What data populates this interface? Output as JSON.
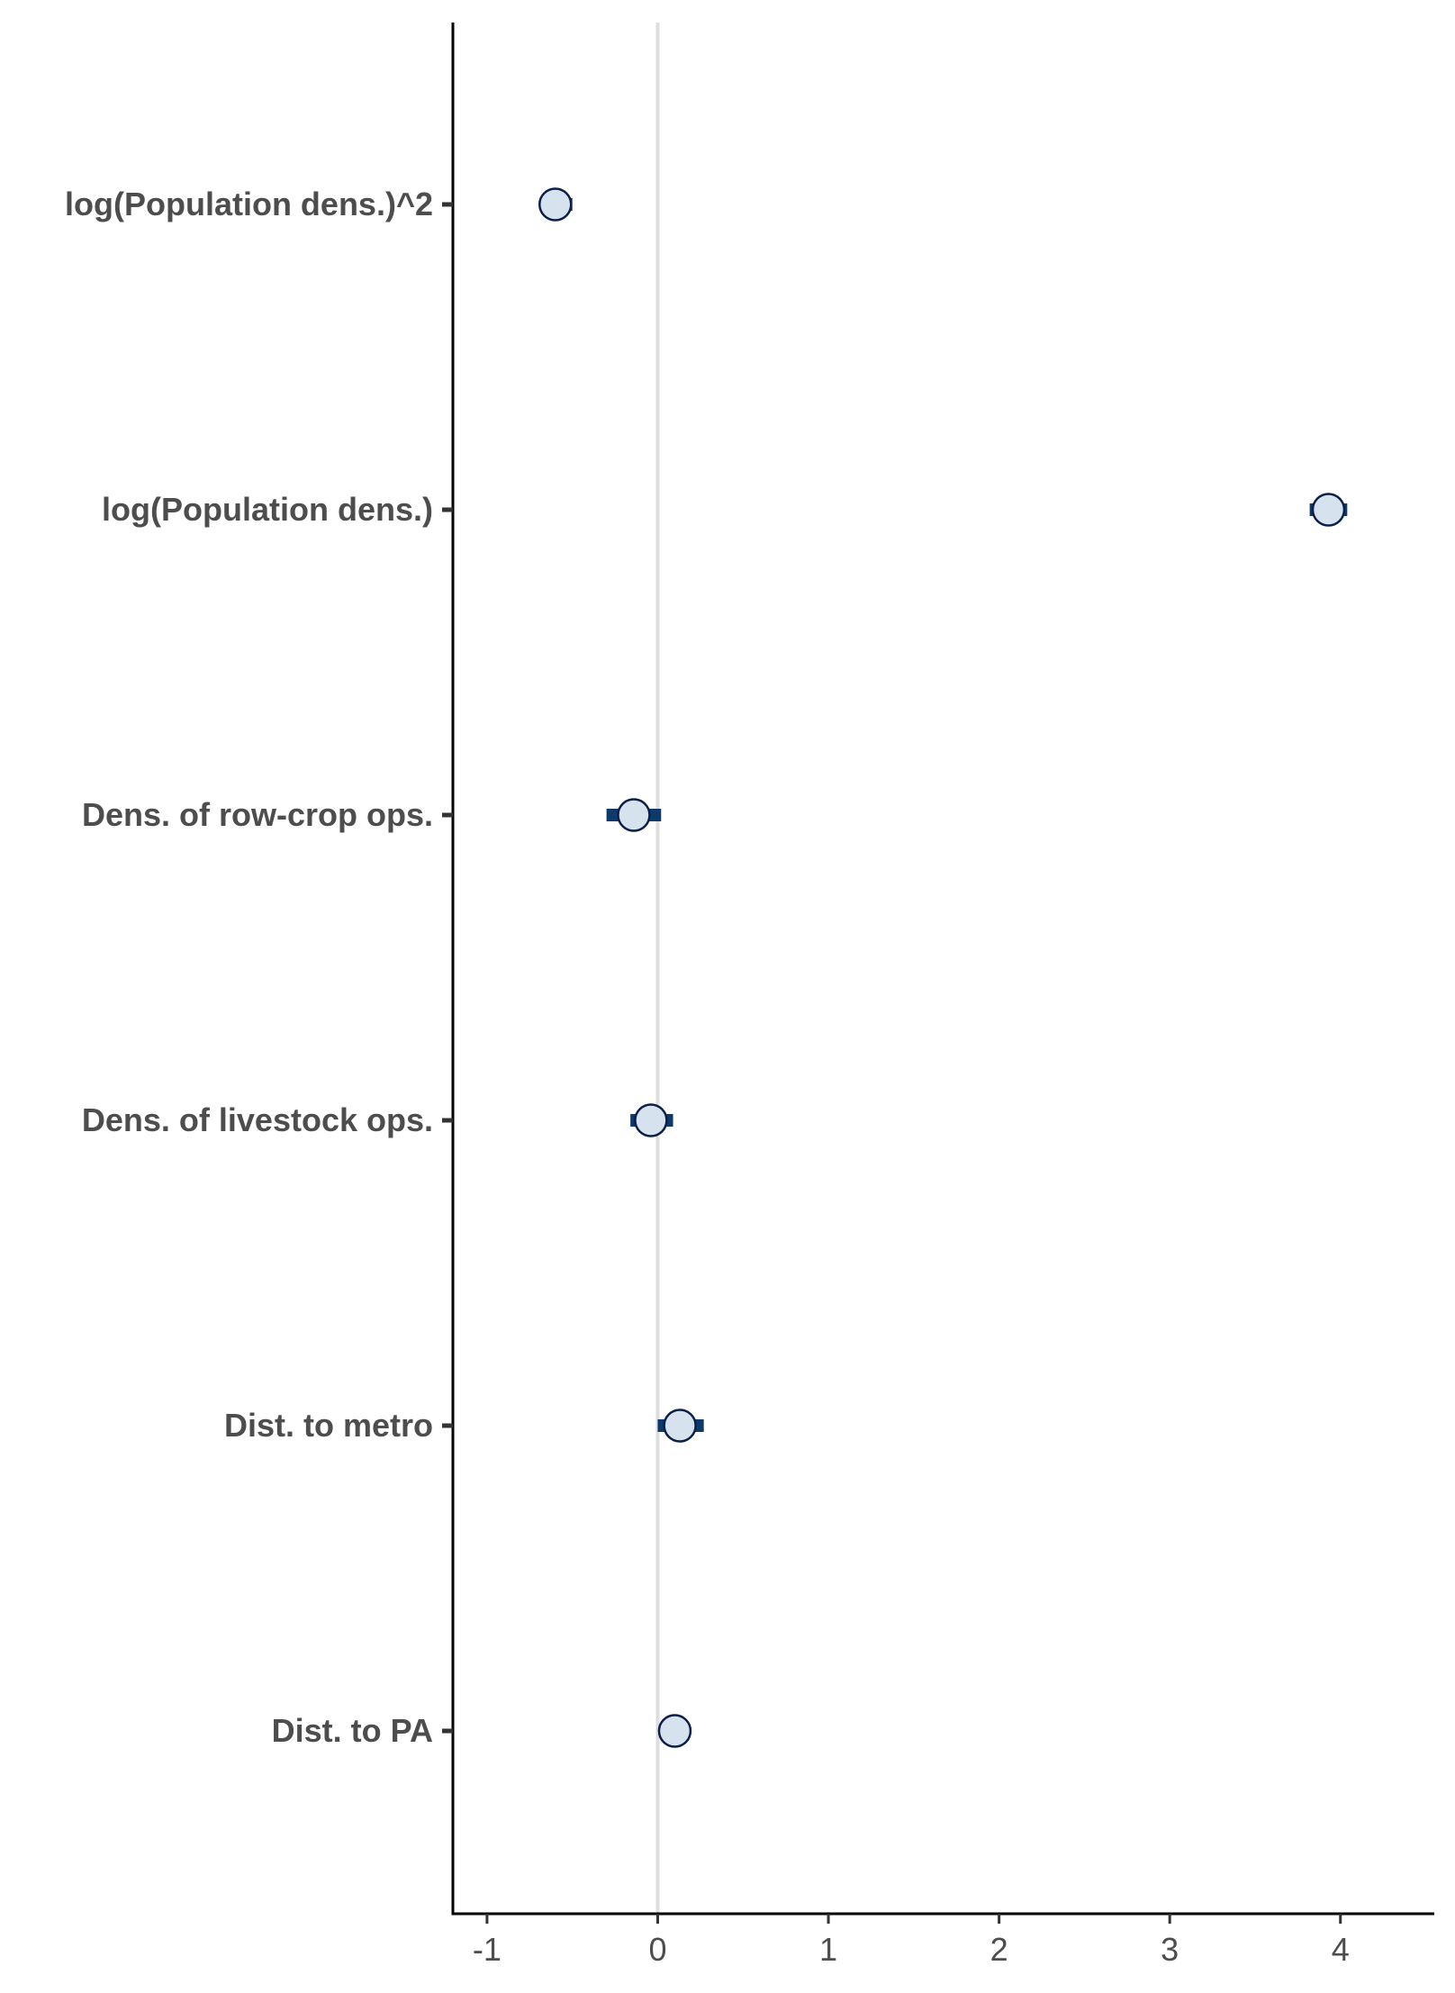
{
  "chart_data": {
    "type": "scatter",
    "subtype": "coefficient-plot",
    "title": "",
    "xlabel": "",
    "ylabel": "",
    "xlim": [
      -1.2,
      4.55
    ],
    "x_ticks": [
      -1,
      0,
      1,
      2,
      3,
      4
    ],
    "x_tick_labels": [
      "-1",
      "0",
      "1",
      "2",
      "3",
      "4"
    ],
    "reference_line": 0,
    "grid": false,
    "legend": "none",
    "terms": [
      {
        "label": "log(Population dens.)^2",
        "estimate": -0.6,
        "low": -0.69,
        "high": -0.5
      },
      {
        "label": "log(Population dens.)",
        "estimate": 3.93,
        "low": 3.82,
        "high": 4.04
      },
      {
        "label": "Dens. of row-crop ops.",
        "estimate": -0.14,
        "low": -0.3,
        "high": 0.02
      },
      {
        "label": "Dens. of livestock ops.",
        "estimate": -0.04,
        "low": -0.16,
        "high": 0.09
      },
      {
        "label": "Dist. to metro",
        "estimate": 0.13,
        "low": 0.0,
        "high": 0.27
      },
      {
        "label": "Dist. to PA",
        "estimate": 0.1,
        "low": 0.05,
        "high": 0.15
      }
    ],
    "colors": {
      "point_fill": "#d6e3ee",
      "point_stroke": "#0b1f4a",
      "interval": "#0e3a6b",
      "axis": "#000000",
      "tick": "#333333",
      "text": "#4d4d4d",
      "zero_line": "#dedede"
    }
  }
}
